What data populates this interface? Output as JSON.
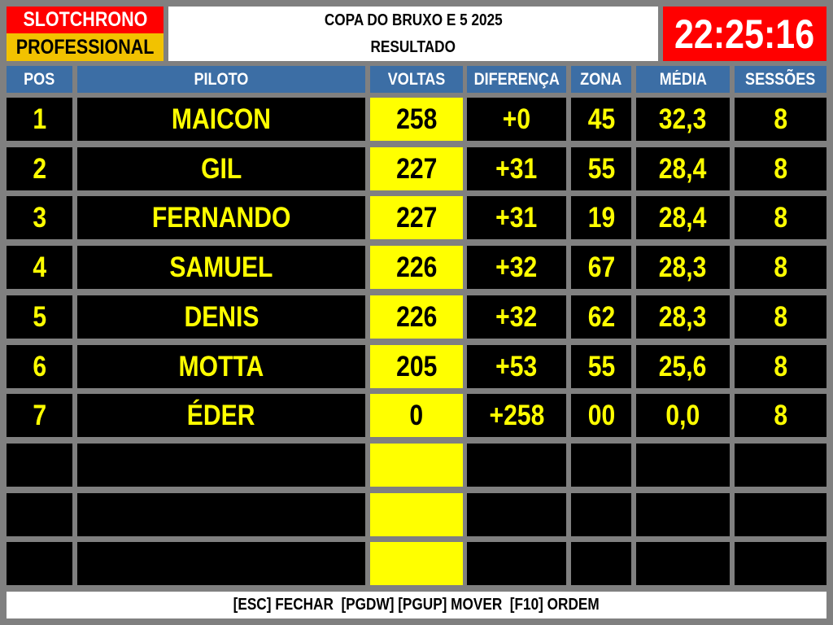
{
  "logo": {
    "line1": "SLOTCHRONO",
    "line2": "PROFESSIONAL"
  },
  "header": {
    "title": "COPA DO BRUXO E 5 2025",
    "subtitle": "RESULTADO",
    "clock": "22:25:16"
  },
  "colors": {
    "logo_red": "#ff0000",
    "logo_yellow": "#f2c200",
    "header_blue": "#3c6ea5",
    "text_yellow": "#ffff00",
    "laps_bg": "#ffff00"
  },
  "table": {
    "columns": [
      "POS",
      "PILOTO",
      "VOLTAS",
      "DIFERENÇA",
      "ZONA",
      "MÉDIA",
      "SESSÕES"
    ],
    "rows": [
      [
        "1",
        "MAICON",
        "258",
        "+0",
        "45",
        "32,3",
        "8"
      ],
      [
        "2",
        "GIL",
        "227",
        "+31",
        "55",
        "28,4",
        "8"
      ],
      [
        "3",
        "FERNANDO",
        "227",
        "+31",
        "19",
        "28,4",
        "8"
      ],
      [
        "4",
        "SAMUEL",
        "226",
        "+32",
        "67",
        "28,3",
        "8"
      ],
      [
        "5",
        "DENIS",
        "226",
        "+32",
        "62",
        "28,3",
        "8"
      ],
      [
        "6",
        "MOTTA",
        "205",
        "+53",
        "55",
        "25,6",
        "8"
      ],
      [
        "7",
        "ÉDER",
        "0",
        "+258",
        "00",
        "0,0",
        "8"
      ],
      [
        "",
        "",
        "",
        "",
        "",
        "",
        ""
      ],
      [
        "",
        "",
        "",
        "",
        "",
        "",
        ""
      ],
      [
        "",
        "",
        "",
        "",
        "",
        "",
        ""
      ]
    ]
  },
  "footer": {
    "hint": "[ESC] FECHAR  [PGDW] [PGUP] MOVER  [F10] ORDEM"
  }
}
